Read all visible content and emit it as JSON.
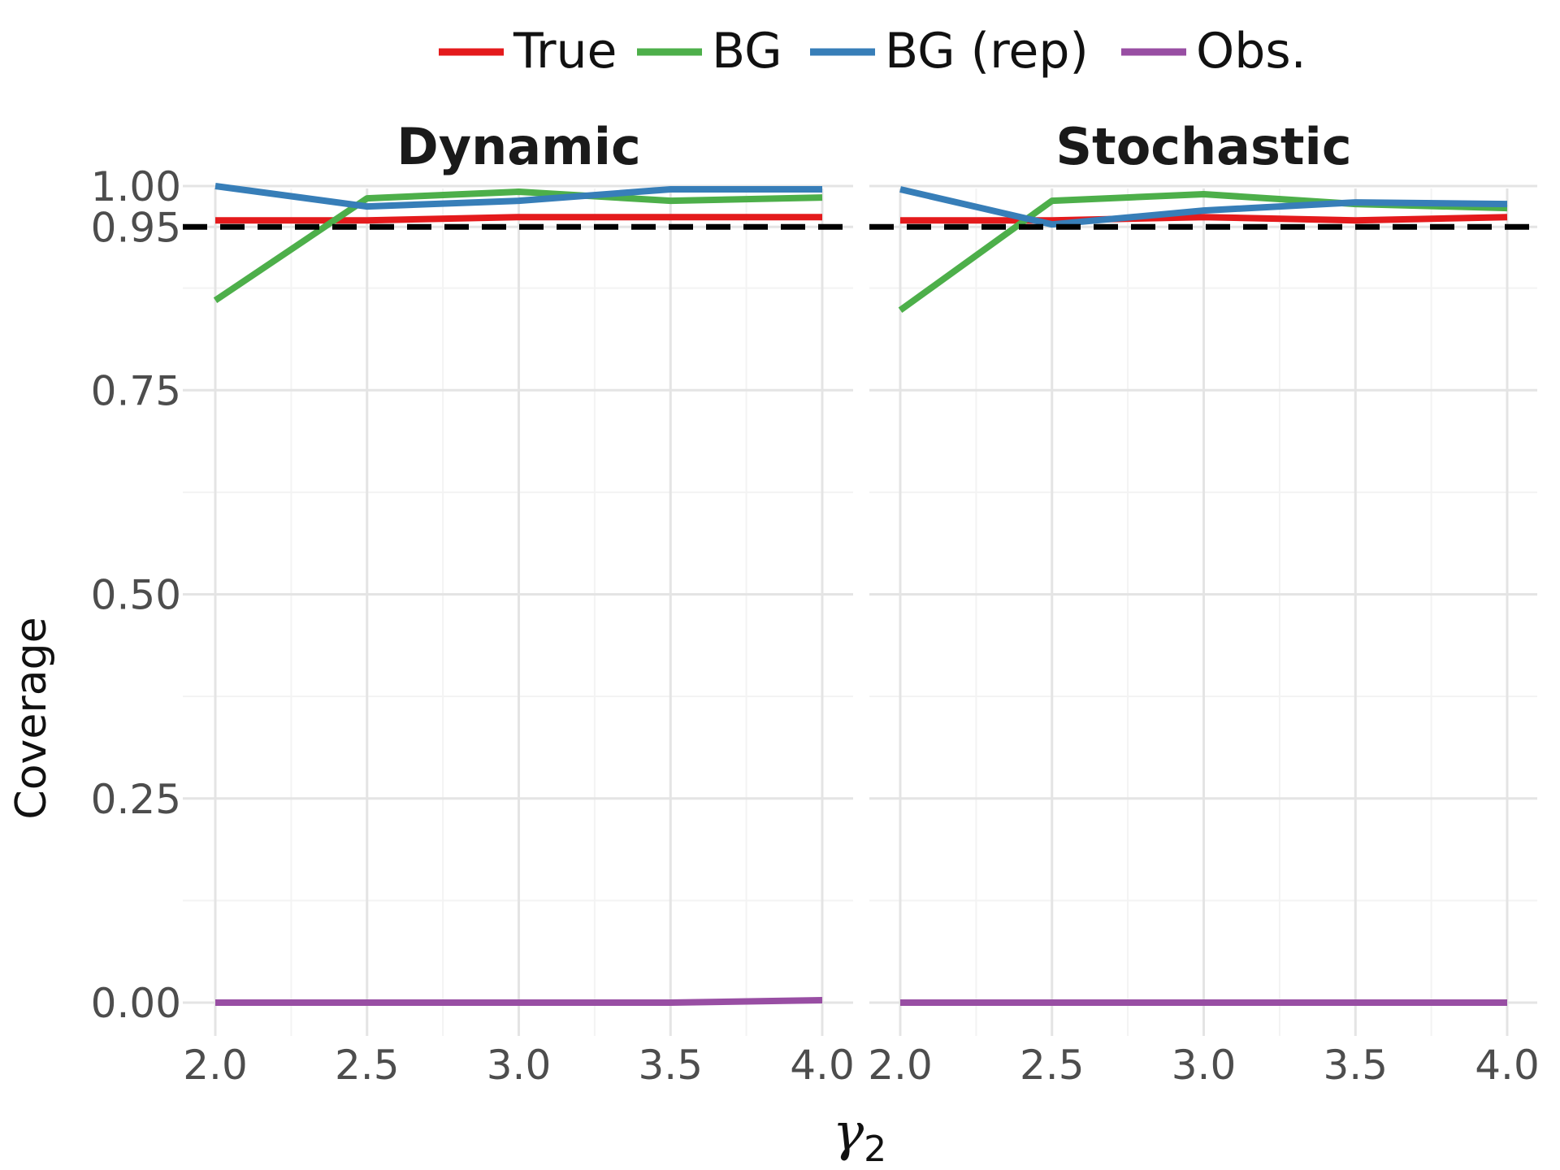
{
  "chart_data": {
    "type": "line",
    "legend": {
      "placement": "top",
      "entries": [
        {
          "label": "True",
          "color": "#e41a1c"
        },
        {
          "label": "BG",
          "color": "#4daf4a"
        },
        {
          "label": "BG (rep)",
          "color": "#377eb8"
        },
        {
          "label": "Obs.",
          "color": "#984ea3"
        }
      ]
    },
    "ylabel": "Coverage",
    "xlabel_base": "γ",
    "xlabel_sub": "2",
    "x": [
      2.0,
      2.5,
      3.0,
      3.5,
      4.0
    ],
    "xlim": [
      2.0,
      4.0
    ],
    "ylim": [
      -0.03,
      1.05
    ],
    "x_ticks": [
      "2.0",
      "2.5",
      "3.0",
      "3.5",
      "4.0"
    ],
    "x_tick_values": [
      2.0,
      2.5,
      3.0,
      3.5,
      4.0
    ],
    "y_ticks": [
      "0.00",
      "0.25",
      "0.50",
      "0.75",
      "0.95",
      "1.00"
    ],
    "y_tick_values": [
      0.0,
      0.25,
      0.5,
      0.75,
      0.95,
      1.0
    ],
    "reference_line": {
      "y": 0.95,
      "style": "dashed",
      "color": "#000000"
    },
    "grid": true,
    "panels": [
      {
        "title": "Dynamic",
        "series": [
          {
            "name": "True",
            "color": "#e41a1c",
            "values": [
              0.958,
              0.958,
              0.962,
              0.962,
              0.962
            ]
          },
          {
            "name": "BG",
            "color": "#4daf4a",
            "values": [
              0.86,
              0.985,
              0.993,
              0.982,
              0.986
            ]
          },
          {
            "name": "BG (rep)",
            "color": "#377eb8",
            "values": [
              1.0,
              0.975,
              0.982,
              0.996,
              0.996
            ]
          },
          {
            "name": "Obs.",
            "color": "#984ea3",
            "values": [
              0.0,
              0.0,
              0.0,
              0.0,
              0.003
            ]
          }
        ]
      },
      {
        "title": "Stochastic",
        "series": [
          {
            "name": "True",
            "color": "#e41a1c",
            "values": [
              0.958,
              0.958,
              0.962,
              0.958,
              0.962
            ]
          },
          {
            "name": "BG",
            "color": "#4daf4a",
            "values": [
              0.848,
              0.982,
              0.99,
              0.978,
              0.973
            ]
          },
          {
            "name": "BG (rep)",
            "color": "#377eb8",
            "values": [
              0.996,
              0.953,
              0.97,
              0.98,
              0.978
            ]
          },
          {
            "name": "Obs.",
            "color": "#984ea3",
            "values": [
              0.0,
              0.0,
              0.0,
              0.0,
              0.0
            ]
          }
        ]
      }
    ]
  }
}
